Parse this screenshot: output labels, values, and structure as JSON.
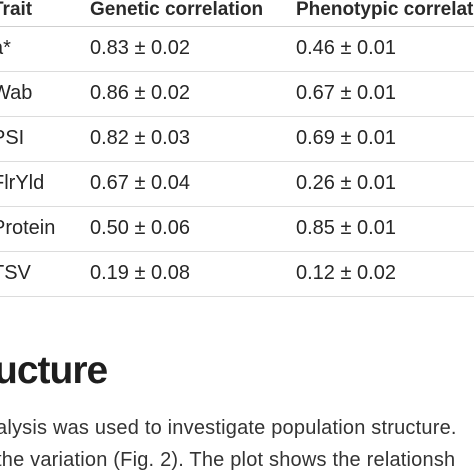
{
  "table": {
    "headers": [
      "Trait",
      "Genetic correlation",
      "Phenotypic correlat"
    ],
    "rows": [
      [
        "a*",
        "0.83 ± 0.02",
        "0.46 ± 0.01"
      ],
      [
        "Wab",
        "0.86 ± 0.02",
        "0.67 ± 0.01"
      ],
      [
        "PSI",
        "0.82 ± 0.03",
        "0.69 ± 0.01"
      ],
      [
        "FlrYld",
        "0.67 ± 0.04",
        "0.26 ± 0.01"
      ],
      [
        "Protein",
        "0.50 ± 0.06",
        "0.85 ± 0.01"
      ],
      [
        "TSV",
        "0.19 ± 0.08",
        "0.12 ± 0.02"
      ]
    ]
  },
  "section": {
    "heading": "ucture",
    "paragraph_lines": [
      "alysis was used to investigate population structure.",
      "the variation (Fig. 2). The plot shows the relationsh"
    ]
  }
}
